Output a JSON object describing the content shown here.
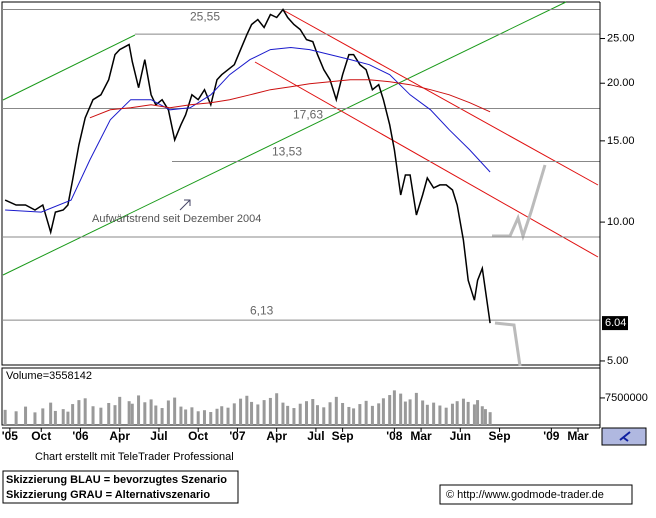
{
  "chart_data": [
    {
      "type": "line",
      "log_scale": true,
      "ylim": [
        4.9,
        30
      ],
      "xlim": [
        2005.5,
        2009.31
      ],
      "yticks": [
        {
          "value": 25,
          "label": "25.00"
        },
        {
          "value": 20,
          "label": "20.00"
        },
        {
          "value": 15,
          "label": "15.00"
        },
        {
          "value": 10,
          "label": "10.00"
        },
        {
          "value": 5,
          "label": "5.00"
        }
      ],
      "annotation": "Aufwärtstrend seit Dezember 2004",
      "levels": [
        {
          "value": 25.55,
          "label": "25,55"
        },
        {
          "value": 17.63,
          "label": "17,63"
        },
        {
          "value": 13.53,
          "label": "13,53"
        },
        {
          "value": 6.13,
          "label": "6,13"
        }
      ],
      "extra_levels": [
        28.9,
        9.28
      ],
      "series": [
        {
          "color": "#000000",
          "x": [
            2005.52,
            2005.59,
            2005.65,
            2005.71,
            2005.76,
            2005.81,
            2005.84,
            2005.89,
            2005.92,
            2005.95,
            2005.99,
            2006.03,
            2006.08,
            2006.13,
            2006.18,
            2006.22,
            2006.25,
            2006.31,
            2006.33,
            2006.37,
            2006.41,
            2006.45,
            2006.48,
            2006.52,
            2006.56,
            2006.6,
            2006.64,
            2006.67,
            2006.71,
            2006.75,
            2006.79,
            2006.83,
            2006.87,
            2006.9,
            2006.94,
            2006.98,
            2007.02,
            2007.06,
            2007.09,
            2007.13,
            2007.17,
            2007.21,
            2007.25,
            2007.29,
            2007.32,
            2007.36,
            2007.4,
            2007.44,
            2007.48,
            2007.51,
            2007.55,
            2007.59,
            2007.63,
            2007.67,
            2007.71,
            2007.74,
            2007.78,
            2007.82,
            2007.86,
            2007.9,
            2007.93,
            2007.97,
            2008.0,
            2008.04,
            2008.07,
            2008.1,
            2008.14,
            2008.18,
            2008.21,
            2008.25,
            2008.29,
            2008.33,
            2008.37,
            2008.4,
            2008.44,
            2008.47,
            2008.51,
            2008.53,
            2008.56,
            2008.58,
            2008.61
          ],
          "values": [
            11.16,
            10.89,
            10.89,
            10.62,
            10.89,
            9.51,
            10.51,
            10.62,
            10.89,
            12.34,
            14.7,
            16.83,
            18.42,
            18.88,
            20.36,
            23.07,
            23.66,
            24.26,
            22.27,
            19.56,
            22.5,
            18.88,
            17.96,
            18.42,
            17.52,
            15.07,
            16.25,
            17.08,
            18.88,
            18.42,
            19.36,
            17.96,
            20.36,
            20.87,
            21.4,
            21.94,
            23.66,
            25.5,
            26.81,
            27.49,
            26.41,
            28.18,
            27.77,
            28.9,
            27.77,
            26.81,
            26.15,
            24.87,
            24.62,
            23.07,
            21.4,
            20.36,
            18.42,
            20.87,
            23.07,
            23.07,
            21.94,
            21.4,
            19.36,
            19.85,
            18.42,
            16.25,
            14.34,
            11.45,
            12.65,
            12.65,
            10.36,
            11.45,
            12.46,
            11.86,
            12.04,
            12.04,
            11.74,
            10.89,
            9.14,
            7.48,
            6.77,
            7.48,
            7.94,
            7.12,
            6.04
          ]
        },
        {
          "color": "#1a1acc",
          "x": [
            2005.52,
            2005.75,
            2005.94,
            2006.06,
            2006.19,
            2006.32,
            2006.45,
            2006.57,
            2006.7,
            2006.83,
            2006.95,
            2007.08,
            2007.21,
            2007.34,
            2007.46,
            2007.59,
            2007.72,
            2007.84,
            2007.97,
            2008.1,
            2008.23,
            2008.35,
            2008.48,
            2008.61
          ],
          "values": [
            10.62,
            10.51,
            11.16,
            13.64,
            16.66,
            18.42,
            18.42,
            17.52,
            17.7,
            18.88,
            20.87,
            22.5,
            23.66,
            23.9,
            23.66,
            23.07,
            22.5,
            21.94,
            20.87,
            18.88,
            17.52,
            15.85,
            14.34,
            12.84
          ]
        },
        {
          "color": "#cc1010",
          "x": [
            2006.06,
            2006.19,
            2006.32,
            2006.45,
            2006.57,
            2006.7,
            2006.83,
            2006.95,
            2007.08,
            2007.21,
            2007.34,
            2007.46,
            2007.59,
            2007.72,
            2007.84,
            2007.97,
            2008.1,
            2008.23,
            2008.35,
            2008.48,
            2008.61
          ],
          "values": [
            16.83,
            17.52,
            17.7,
            17.96,
            17.7,
            17.96,
            18.15,
            18.42,
            18.88,
            19.36,
            19.66,
            19.95,
            20.15,
            20.36,
            20.36,
            20.15,
            19.85,
            19.36,
            18.88,
            18.15,
            17.34
          ]
        }
      ]
    },
    {
      "type": "bar",
      "label": "Volume=3558142",
      "ylim": [
        0,
        15800000
      ],
      "yticks": [
        7500000
      ],
      "xlim": [
        2005.5,
        2009.31
      ],
      "color": "#999999",
      "xticks": [
        {
          "value": 2005.55,
          "label": "'05"
        },
        {
          "value": 2005.75,
          "label": "Oct"
        },
        {
          "value": 2006.0,
          "label": "'06"
        },
        {
          "value": 2006.25,
          "label": "Apr"
        },
        {
          "value": 2006.5,
          "label": "Jul"
        },
        {
          "value": 2006.75,
          "label": "Oct"
        },
        {
          "value": 2007.0,
          "label": "'07"
        },
        {
          "value": 2007.25,
          "label": "Apr"
        },
        {
          "value": 2007.5,
          "label": "Jul"
        },
        {
          "value": 2007.67,
          "label": "Sep"
        },
        {
          "value": 2008.0,
          "label": "'08"
        },
        {
          "value": 2008.17,
          "label": "Mar"
        },
        {
          "value": 2008.42,
          "label": "Jun"
        },
        {
          "value": 2008.67,
          "label": "Sep"
        },
        {
          "value": 2009.0,
          "label": "'09"
        },
        {
          "value": 2009.17,
          "label": "Mar"
        }
      ],
      "x": [
        2005.52,
        2005.59,
        2005.65,
        2005.71,
        2005.76,
        2005.81,
        2005.84,
        2005.89,
        2005.92,
        2005.95,
        2005.99,
        2006.03,
        2006.08,
        2006.13,
        2006.18,
        2006.22,
        2006.25,
        2006.31,
        2006.33,
        2006.37,
        2006.41,
        2006.45,
        2006.48,
        2006.52,
        2006.56,
        2006.6,
        2006.64,
        2006.67,
        2006.71,
        2006.75,
        2006.79,
        2006.83,
        2006.87,
        2006.9,
        2006.94,
        2006.98,
        2007.02,
        2007.06,
        2007.09,
        2007.13,
        2007.17,
        2007.21,
        2007.25,
        2007.29,
        2007.32,
        2007.36,
        2007.4,
        2007.44,
        2007.48,
        2007.51,
        2007.55,
        2007.59,
        2007.63,
        2007.67,
        2007.71,
        2007.74,
        2007.78,
        2007.82,
        2007.86,
        2007.9,
        2007.93,
        2007.97,
        2008.0,
        2008.04,
        2008.07,
        2008.1,
        2008.14,
        2008.18,
        2008.21,
        2008.25,
        2008.29,
        2008.33,
        2008.37,
        2008.4,
        2008.44,
        2008.47,
        2008.51,
        2008.53,
        2008.56,
        2008.58,
        2008.61
      ],
      "values": [
        4200000,
        3800000,
        5100000,
        3500000,
        4600000,
        6200000,
        3900000,
        4400000,
        3700000,
        5800000,
        6900000,
        7400000,
        5200000,
        4800000,
        6100000,
        5500000,
        7800000,
        6600000,
        5900000,
        8200000,
        6300000,
        7100000,
        5400000,
        4700000,
        6800000,
        7600000,
        5100000,
        4300000,
        4900000,
        3800000,
        4100000,
        3600000,
        4500000,
        5200000,
        4800000,
        6000000,
        7300000,
        8100000,
        6400000,
        5700000,
        6900000,
        7500000,
        8800000,
        6200000,
        5300000,
        4700000,
        5900000,
        6600000,
        7200000,
        5500000,
        4900000,
        6300000,
        7800000,
        6100000,
        5000000,
        4600000,
        5800000,
        6700000,
        5300000,
        6000000,
        7400000,
        8300000,
        9600000,
        8700000,
        6500000,
        7100000,
        8900000,
        6800000,
        5600000,
        6200000,
        5400000,
        4800000,
        5900000,
        6600000,
        7300000,
        6400000,
        5700000,
        6900000,
        5200000,
        4400000,
        3558142
      ]
    }
  ],
  "footer": {
    "credit": "Chart erstellt mit TeleTrader Professional",
    "legend": [
      "Skizzierung BLAU = bevorzugtes Szenario",
      "Skizzierung GRAU = Alternativszenario"
    ],
    "copyright": "© http://www.godmode-trader.de"
  }
}
